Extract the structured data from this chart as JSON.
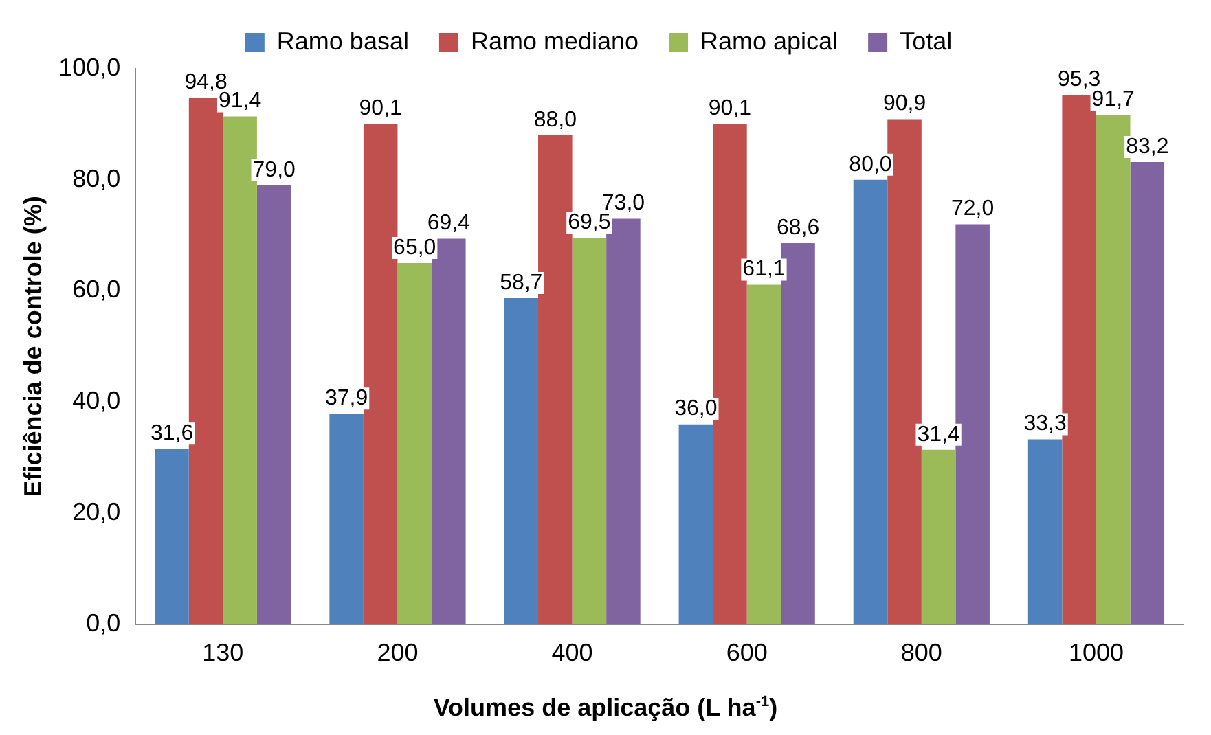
{
  "chart_data": {
    "type": "bar",
    "xlabel": "Volumes de aplicação (L ha$^{-1}$)",
    "ylabel": "Eficiência de controle (%)",
    "categories": [
      "130",
      "200",
      "400",
      "600",
      "800",
      "1000"
    ],
    "series": [
      {
        "name": "Ramo basal",
        "color": "#4f81bd",
        "values": [
          31.6,
          37.9,
          58.7,
          36.0,
          80.0,
          33.3
        ],
        "value_labels": [
          "31,6",
          "37,9",
          "58,7",
          "36,0",
          "80,0",
          "33,3"
        ]
      },
      {
        "name": "Ramo mediano",
        "color": "#c0504d",
        "values": [
          94.8,
          90.1,
          88.0,
          90.1,
          90.9,
          95.3
        ],
        "value_labels": [
          "94,8",
          "90,1",
          "88,0",
          "90,1",
          "90,9",
          "95,3"
        ]
      },
      {
        "name": "Ramo apical",
        "color": "#9bbb59",
        "values": [
          91.4,
          65.0,
          69.5,
          61.1,
          31.4,
          91.7
        ],
        "value_labels": [
          "91,4",
          "65,0",
          "69,5",
          "61,1",
          "31,4",
          "91,7"
        ]
      },
      {
        "name": "Total",
        "color": "#8064a2",
        "values": [
          79.0,
          69.4,
          73.0,
          68.6,
          72.0,
          83.2
        ],
        "value_labels": [
          "79,0",
          "69,4",
          "73,0",
          "68,6",
          "72,0",
          "83,2"
        ]
      }
    ],
    "ylim": [
      0,
      100
    ],
    "yticks": [
      {
        "value": 0,
        "label": "0,0"
      },
      {
        "value": 20,
        "label": "20,0"
      },
      {
        "value": 40,
        "label": "40,0"
      },
      {
        "value": 60,
        "label": "60,0"
      },
      {
        "value": 80,
        "label": "80,0"
      },
      {
        "value": 100,
        "label": "100,0"
      }
    ],
    "legend": "top"
  }
}
